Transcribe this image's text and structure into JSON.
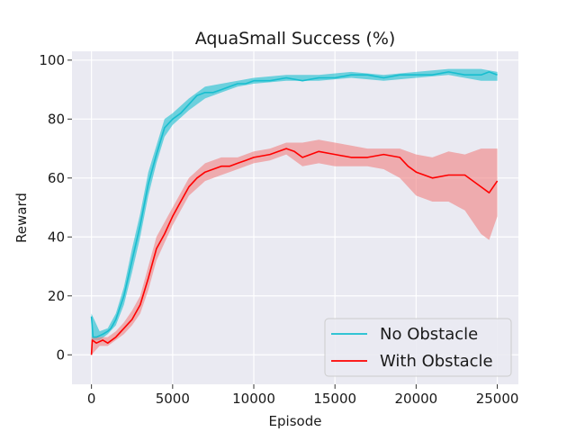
{
  "chart_data": {
    "type": "line",
    "title": "AquaSmall Success (%)",
    "xlabel": "Episode",
    "ylabel": "Reward",
    "xlim": [
      -1200,
      26300
    ],
    "ylim": [
      -10,
      103
    ],
    "xticks": [
      0,
      5000,
      10000,
      15000,
      20000,
      25000
    ],
    "yticks": [
      0,
      20,
      40,
      60,
      80,
      100
    ],
    "grid": true,
    "legend_position": "lower-right",
    "colors": {
      "background": "#eaeaf2",
      "grid": "#ffffff"
    },
    "series": [
      {
        "name": "No Obstacle",
        "color": "#17becf",
        "band_color": "#17becf",
        "points": [
          [
            0,
            13
          ],
          [
            100,
            6
          ],
          [
            300,
            6
          ],
          [
            700,
            7
          ],
          [
            1000,
            8
          ],
          [
            1200,
            9
          ],
          [
            1500,
            12
          ],
          [
            2000,
            20
          ],
          [
            2500,
            32
          ],
          [
            3000,
            44
          ],
          [
            3500,
            58
          ],
          [
            4000,
            68
          ],
          [
            4500,
            77
          ],
          [
            5000,
            80
          ],
          [
            5500,
            82
          ],
          [
            6000,
            85
          ],
          [
            6500,
            88
          ],
          [
            7000,
            89
          ],
          [
            7500,
            89
          ],
          [
            8000,
            90
          ],
          [
            8500,
            91
          ],
          [
            9000,
            92
          ],
          [
            9500,
            92
          ],
          [
            10000,
            93
          ],
          [
            11000,
            93
          ],
          [
            12000,
            94
          ],
          [
            13000,
            93
          ],
          [
            14000,
            94
          ],
          [
            15000,
            94
          ],
          [
            16000,
            95
          ],
          [
            17000,
            95
          ],
          [
            18000,
            94
          ],
          [
            19000,
            95
          ],
          [
            20000,
            95
          ],
          [
            21000,
            95
          ],
          [
            22000,
            96
          ],
          [
            23000,
            95
          ],
          [
            24000,
            95
          ],
          [
            24500,
            96
          ],
          [
            25000,
            95
          ]
        ],
        "band": [
          [
            0,
            5,
            14
          ],
          [
            500,
            5,
            8
          ],
          [
            1000,
            7,
            9
          ],
          [
            1500,
            10,
            14
          ],
          [
            2000,
            17,
            23
          ],
          [
            2500,
            28,
            36
          ],
          [
            3000,
            40,
            48
          ],
          [
            3500,
            54,
            62
          ],
          [
            4000,
            65,
            71
          ],
          [
            4500,
            74,
            80
          ],
          [
            5000,
            78,
            82
          ],
          [
            6000,
            83,
            87
          ],
          [
            7000,
            87,
            91
          ],
          [
            8000,
            89,
            92
          ],
          [
            9000,
            91,
            93
          ],
          [
            10000,
            92,
            94
          ],
          [
            12000,
            93,
            95
          ],
          [
            14000,
            93,
            95
          ],
          [
            16000,
            94,
            96
          ],
          [
            18000,
            93,
            95
          ],
          [
            20000,
            94,
            96
          ],
          [
            22000,
            95,
            97
          ],
          [
            23000,
            94,
            97
          ],
          [
            24000,
            93,
            97
          ],
          [
            25000,
            93,
            96
          ]
        ]
      },
      {
        "name": "With Obstacle",
        "color": "#ff0000",
        "band_color": "#f08080",
        "points": [
          [
            0,
            0
          ],
          [
            50,
            5
          ],
          [
            300,
            4
          ],
          [
            700,
            5
          ],
          [
            1000,
            4
          ],
          [
            1500,
            6
          ],
          [
            2000,
            9
          ],
          [
            2500,
            12
          ],
          [
            3000,
            17
          ],
          [
            3500,
            26
          ],
          [
            4000,
            36
          ],
          [
            4500,
            41
          ],
          [
            5000,
            47
          ],
          [
            5500,
            52
          ],
          [
            6000,
            57
          ],
          [
            6500,
            60
          ],
          [
            7000,
            62
          ],
          [
            7500,
            63
          ],
          [
            8000,
            64
          ],
          [
            8500,
            64
          ],
          [
            9000,
            65
          ],
          [
            9500,
            66
          ],
          [
            10000,
            67
          ],
          [
            11000,
            68
          ],
          [
            12000,
            70
          ],
          [
            12500,
            69
          ],
          [
            13000,
            67
          ],
          [
            13500,
            68
          ],
          [
            14000,
            69
          ],
          [
            15000,
            68
          ],
          [
            16000,
            67
          ],
          [
            17000,
            67
          ],
          [
            18000,
            68
          ],
          [
            19000,
            67
          ],
          [
            19500,
            64
          ],
          [
            20000,
            62
          ],
          [
            21000,
            60
          ],
          [
            22000,
            61
          ],
          [
            23000,
            61
          ],
          [
            24000,
            57
          ],
          [
            24500,
            55
          ],
          [
            25000,
            59
          ]
        ],
        "band": [
          [
            0,
            0,
            6
          ],
          [
            500,
            3,
            6
          ],
          [
            1000,
            3,
            6
          ],
          [
            1500,
            5,
            8
          ],
          [
            2000,
            7,
            11
          ],
          [
            2500,
            10,
            15
          ],
          [
            3000,
            14,
            20
          ],
          [
            3500,
            22,
            30
          ],
          [
            4000,
            32,
            40
          ],
          [
            4500,
            38,
            45
          ],
          [
            5000,
            44,
            50
          ],
          [
            5500,
            49,
            55
          ],
          [
            6000,
            54,
            60
          ],
          [
            7000,
            59,
            65
          ],
          [
            8000,
            61,
            67
          ],
          [
            9000,
            63,
            67
          ],
          [
            10000,
            65,
            69
          ],
          [
            11000,
            66,
            70
          ],
          [
            12000,
            68,
            72
          ],
          [
            13000,
            64,
            72
          ],
          [
            14000,
            65,
            73
          ],
          [
            15000,
            64,
            72
          ],
          [
            16000,
            64,
            71
          ],
          [
            17000,
            64,
            70
          ],
          [
            18000,
            63,
            70
          ],
          [
            19000,
            60,
            70
          ],
          [
            20000,
            54,
            68
          ],
          [
            21000,
            52,
            67
          ],
          [
            22000,
            52,
            69
          ],
          [
            23000,
            49,
            68
          ],
          [
            24000,
            41,
            70
          ],
          [
            24500,
            39,
            70
          ],
          [
            25000,
            47,
            70
          ]
        ]
      }
    ]
  }
}
